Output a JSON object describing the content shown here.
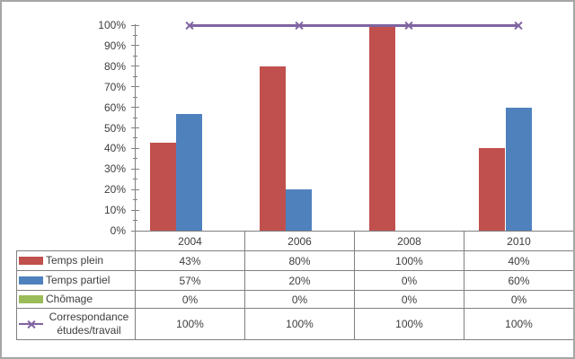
{
  "frame": {
    "background": "#ffffff",
    "border_color": "#a6a6a6"
  },
  "colors": {
    "axis_and_table_border": "#808080",
    "text": "#3d3d3d",
    "temps_plein_red": "#c0504d",
    "temps_partiel_blue": "#4f81bd",
    "chomage_green": "#9bbb59",
    "correspondance_purple": "#8064a2"
  },
  "chart_data": {
    "type": "bar",
    "title": "",
    "xlabel": "",
    "ylabel": "",
    "grid": false,
    "legend_position": "data-table-left-column",
    "data_table_shown": true,
    "categories": [
      "2004",
      "2006",
      "2008",
      "2010"
    ],
    "series": [
      {
        "key": "temps-plein",
        "name": "Temps plein",
        "type": "bar",
        "color": "#c0504d",
        "values": [
          43,
          80,
          100,
          40
        ],
        "labels": [
          "43%",
          "80%",
          "100%",
          "40%"
        ]
      },
      {
        "key": "temps-partiel",
        "name": "Temps partiel",
        "type": "bar",
        "color": "#4f81bd",
        "values": [
          57,
          20,
          0,
          60
        ],
        "labels": [
          "57%",
          "20%",
          "0%",
          "60%"
        ]
      },
      {
        "key": "chomage",
        "name": "Chômage",
        "type": "bar",
        "color": "#9bbb59",
        "values": [
          0,
          0,
          0,
          0
        ],
        "labels": [
          "0%",
          "0%",
          "0%",
          "0%"
        ]
      },
      {
        "key": "correspondance-etudes-travail",
        "name": "Correspondance études/travail",
        "type": "line",
        "marker": "x",
        "color": "#8064a2",
        "values": [
          100,
          100,
          100,
          100
        ],
        "labels": [
          "100%",
          "100%",
          "100%",
          "100%"
        ]
      }
    ],
    "y_axis": {
      "min": 0,
      "max": 100,
      "major_step": 10,
      "minor_step": 5,
      "format": "percent",
      "tick_labels": [
        "0%",
        "10%",
        "20%",
        "30%",
        "40%",
        "50%",
        "60%",
        "70%",
        "80%",
        "90%",
        "100%"
      ]
    }
  }
}
